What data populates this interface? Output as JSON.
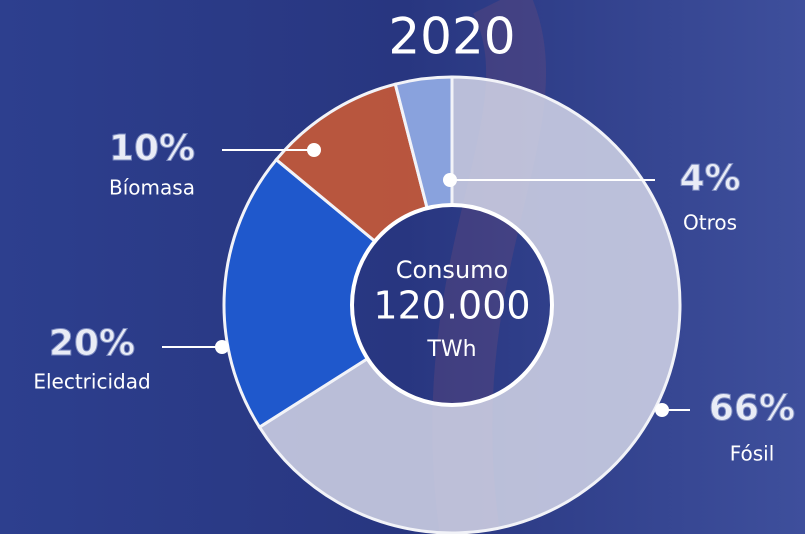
{
  "chart_data": {
    "type": "pie",
    "donut": true,
    "title": "2020",
    "center_text": [
      "Consumo",
      "120.000",
      "TWh"
    ],
    "categories": [
      "Fósil",
      "Electricidad",
      "Bíomasa",
      "Otros"
    ],
    "values": [
      66,
      20,
      10,
      4
    ],
    "value_labels": [
      "66%",
      "20%",
      "10%",
      "4%"
    ],
    "colors": [
      "#d3d6e8",
      "#1f5ad0",
      "#c0573a",
      "#8ea8e2"
    ]
  }
}
